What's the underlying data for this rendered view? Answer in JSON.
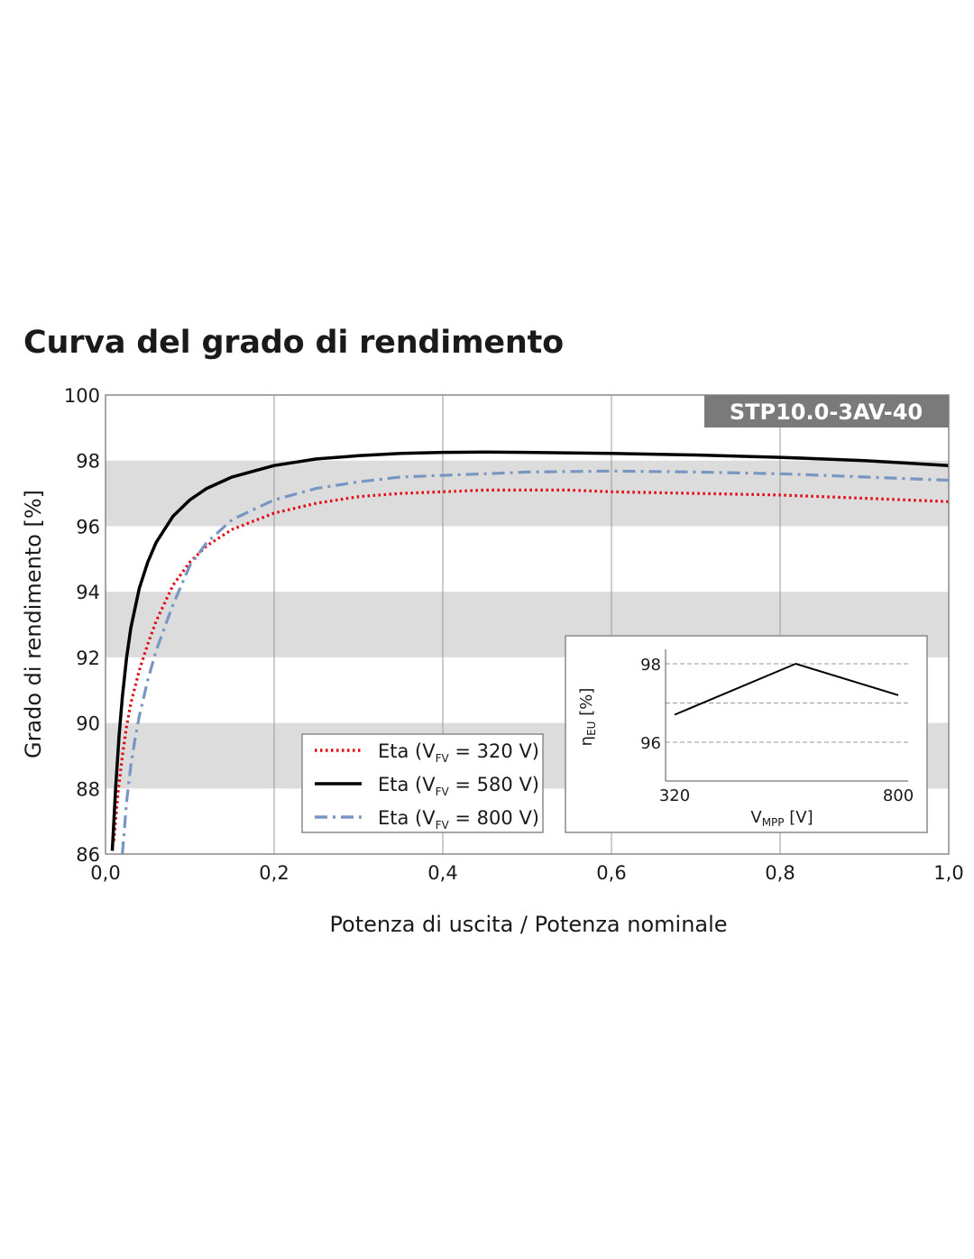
{
  "page": {
    "title": "Curva del grado di rendimento"
  },
  "chart_data": [
    {
      "type": "line",
      "title": "Curva del grado di rendimento",
      "badge": "STP10.0-3AV-40",
      "xlabel": "Potenza di uscita / Potenza nominale",
      "ylabel": "Grado di rendimento [%]",
      "xlim": [
        0,
        1
      ],
      "ylim": [
        86,
        100
      ],
      "xticks": [
        "0,0",
        "0,2",
        "0,4",
        "0,6",
        "0,8",
        "1,0"
      ],
      "yticks": [
        "86",
        "88",
        "90",
        "92",
        "94",
        "96",
        "98",
        "100"
      ],
      "bands": [
        [
          88,
          90
        ],
        [
          92,
          94
        ],
        [
          96,
          98
        ]
      ],
      "grid": "vertical",
      "legend_position": "bottom-center",
      "series": [
        {
          "name": "Eta (VFV = 320 V)",
          "label_main": "Eta (V",
          "label_sub": "FV",
          "label_tail": " = 320 V)",
          "color": "#e30613",
          "style": "dotted",
          "x": [
            0.01,
            0.015,
            0.02,
            0.025,
            0.03,
            0.04,
            0.05,
            0.06,
            0.08,
            0.1,
            0.12,
            0.15,
            0.2,
            0.25,
            0.3,
            0.35,
            0.4,
            0.45,
            0.5,
            0.55,
            0.6,
            0.7,
            0.8,
            0.9,
            1.0
          ],
          "y": [
            86.4,
            87.9,
            89.0,
            89.9,
            90.6,
            91.6,
            92.4,
            93.1,
            94.2,
            94.9,
            95.4,
            95.9,
            96.4,
            96.7,
            96.9,
            97.0,
            97.05,
            97.1,
            97.1,
            97.1,
            97.05,
            97.0,
            96.95,
            96.85,
            96.75
          ]
        },
        {
          "name": "Eta (VFV = 580 V)",
          "label_main": "Eta (V",
          "label_sub": "FV",
          "label_tail": " = 580 V)",
          "color": "#000000",
          "style": "solid",
          "x": [
            0.008,
            0.012,
            0.016,
            0.02,
            0.025,
            0.03,
            0.04,
            0.05,
            0.06,
            0.07,
            0.08,
            0.1,
            0.12,
            0.15,
            0.2,
            0.25,
            0.3,
            0.35,
            0.4,
            0.45,
            0.5,
            0.6,
            0.7,
            0.8,
            0.9,
            1.0
          ],
          "y": [
            86.1,
            88.0,
            89.6,
            90.8,
            92.0,
            92.9,
            94.1,
            94.9,
            95.5,
            95.9,
            96.3,
            96.8,
            97.15,
            97.5,
            97.85,
            98.05,
            98.15,
            98.22,
            98.25,
            98.26,
            98.25,
            98.22,
            98.17,
            98.1,
            98.0,
            97.85
          ]
        },
        {
          "name": "Eta (VFV = 800 V)",
          "label_main": "Eta (V",
          "label_sub": "FV",
          "label_tail": " = 800 V)",
          "color": "#7896c2",
          "style": "dashdot",
          "x": [
            0.02,
            0.025,
            0.03,
            0.035,
            0.04,
            0.05,
            0.06,
            0.07,
            0.08,
            0.1,
            0.12,
            0.15,
            0.2,
            0.25,
            0.3,
            0.35,
            0.4,
            0.45,
            0.5,
            0.6,
            0.7,
            0.8,
            0.9,
            1.0
          ],
          "y": [
            86.0,
            87.6,
            88.7,
            89.5,
            90.2,
            91.3,
            92.2,
            92.9,
            93.6,
            94.8,
            95.5,
            96.2,
            96.8,
            97.15,
            97.35,
            97.5,
            97.55,
            97.6,
            97.65,
            97.68,
            97.65,
            97.6,
            97.5,
            97.4
          ]
        }
      ]
    },
    {
      "type": "line",
      "xlabel_main": "V",
      "xlabel_sub": "MPP",
      "xlabel_tail": " [V]",
      "ylabel_main": "η",
      "ylabel_sub": "EU",
      "ylabel_tail": " [%]",
      "xlim": [
        320,
        800
      ],
      "ylim": [
        95,
        98
      ],
      "xticks": [
        "320",
        "800"
      ],
      "yticks": [
        "96",
        "98"
      ],
      "grid": "horizontal-dashed",
      "series": [
        {
          "color": "#000000",
          "style": "solid",
          "x": [
            320,
            580,
            800
          ],
          "y": [
            96.7,
            98.0,
            97.2
          ]
        }
      ]
    }
  ]
}
